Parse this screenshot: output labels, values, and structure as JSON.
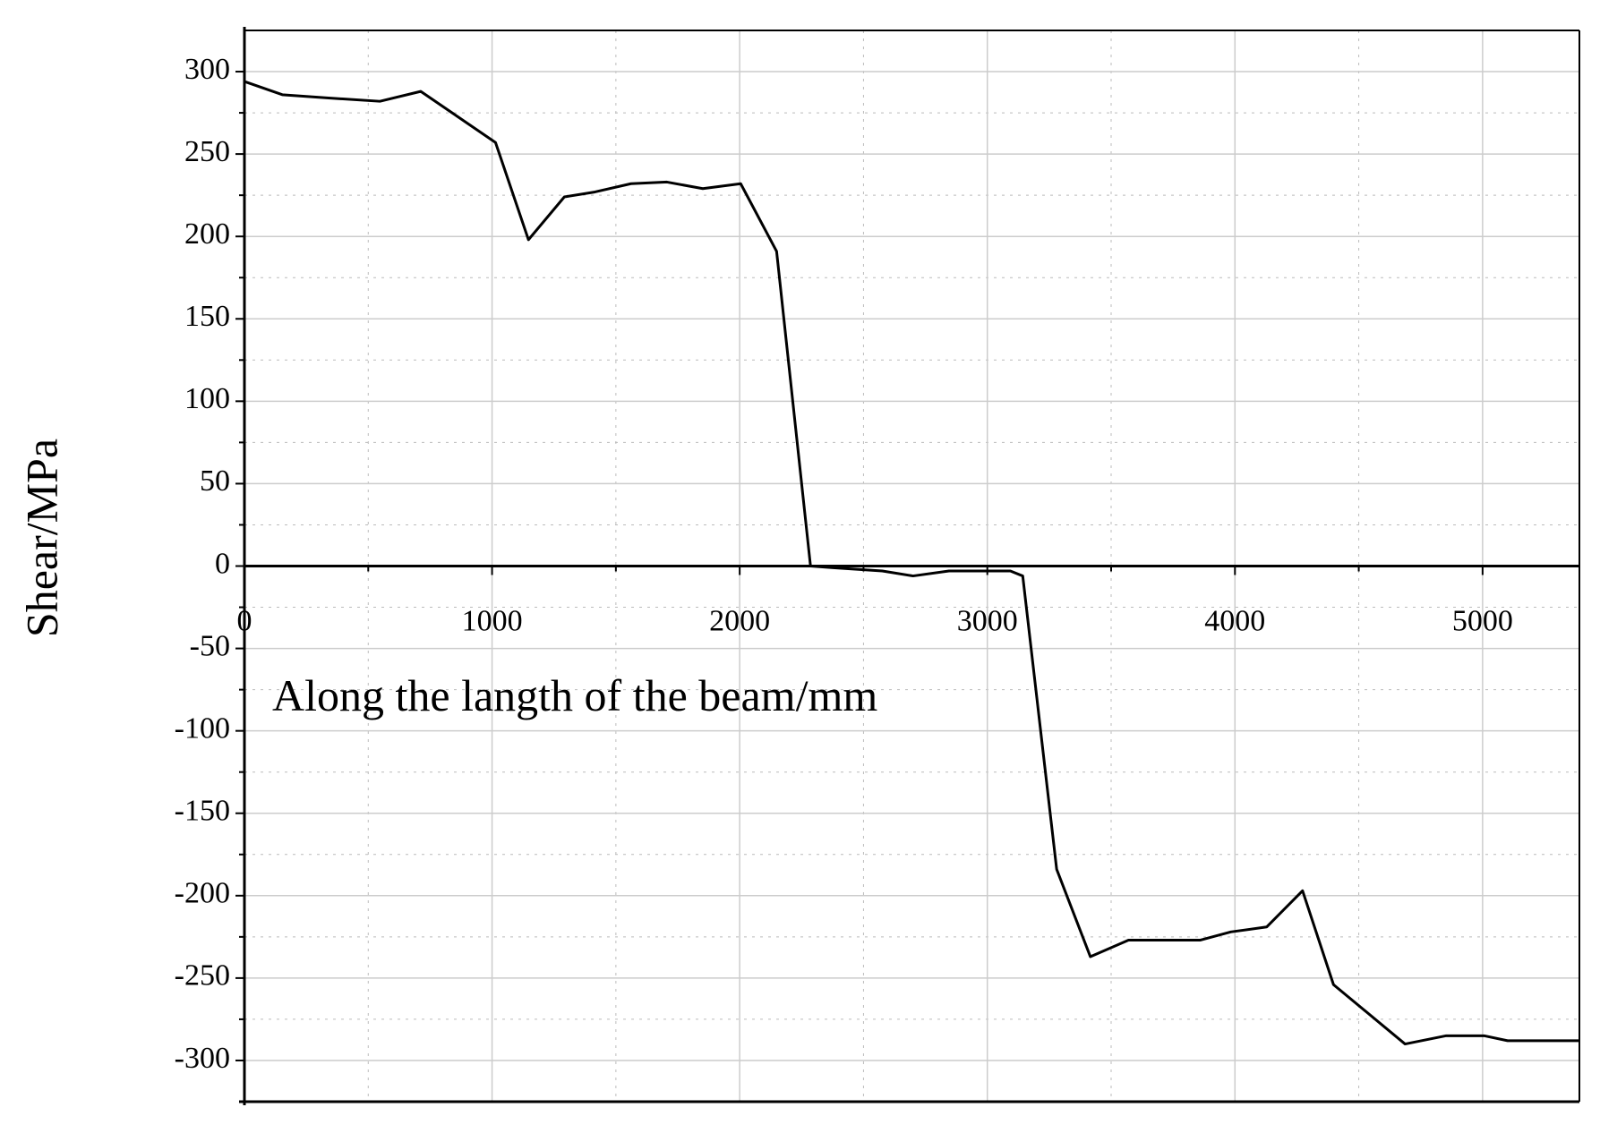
{
  "chart_data": {
    "type": "line",
    "x_label": "Along the langth of the beam/mm",
    "y_label": "Shear/MPa",
    "series": [
      {
        "color": "#000000",
        "x": [
          0,
          153,
          340,
          547,
          712,
          1014,
          1147,
          1292,
          1416,
          1561,
          1706,
          1851,
          2004,
          2149,
          2286,
          2377,
          2576,
          2700,
          2845,
          3093,
          3143,
          3280,
          3416,
          3570,
          3859,
          3983,
          4128,
          4273,
          4398,
          4687,
          4853,
          5006,
          5101,
          5391
        ],
        "values": [
          294,
          286,
          284,
          282,
          288,
          257,
          198,
          224,
          227,
          232,
          233,
          229,
          232,
          191,
          0,
          -1,
          -3,
          -6,
          -3,
          -3,
          -6,
          -184,
          -237,
          -227,
          -227,
          -222,
          -219,
          -197,
          -254,
          -290,
          -285,
          -285,
          -288,
          -288
        ]
      }
    ],
    "xlim": [
      0,
      5391
    ],
    "xticks": [
      0,
      1000,
      2000,
      3000,
      4000,
      5000
    ],
    "ylim": [
      -325,
      325
    ],
    "yticks": [
      -300,
      -250,
      -200,
      -150,
      -100,
      -50,
      0,
      50,
      100,
      150,
      200,
      250,
      300
    ],
    "grid": true
  }
}
